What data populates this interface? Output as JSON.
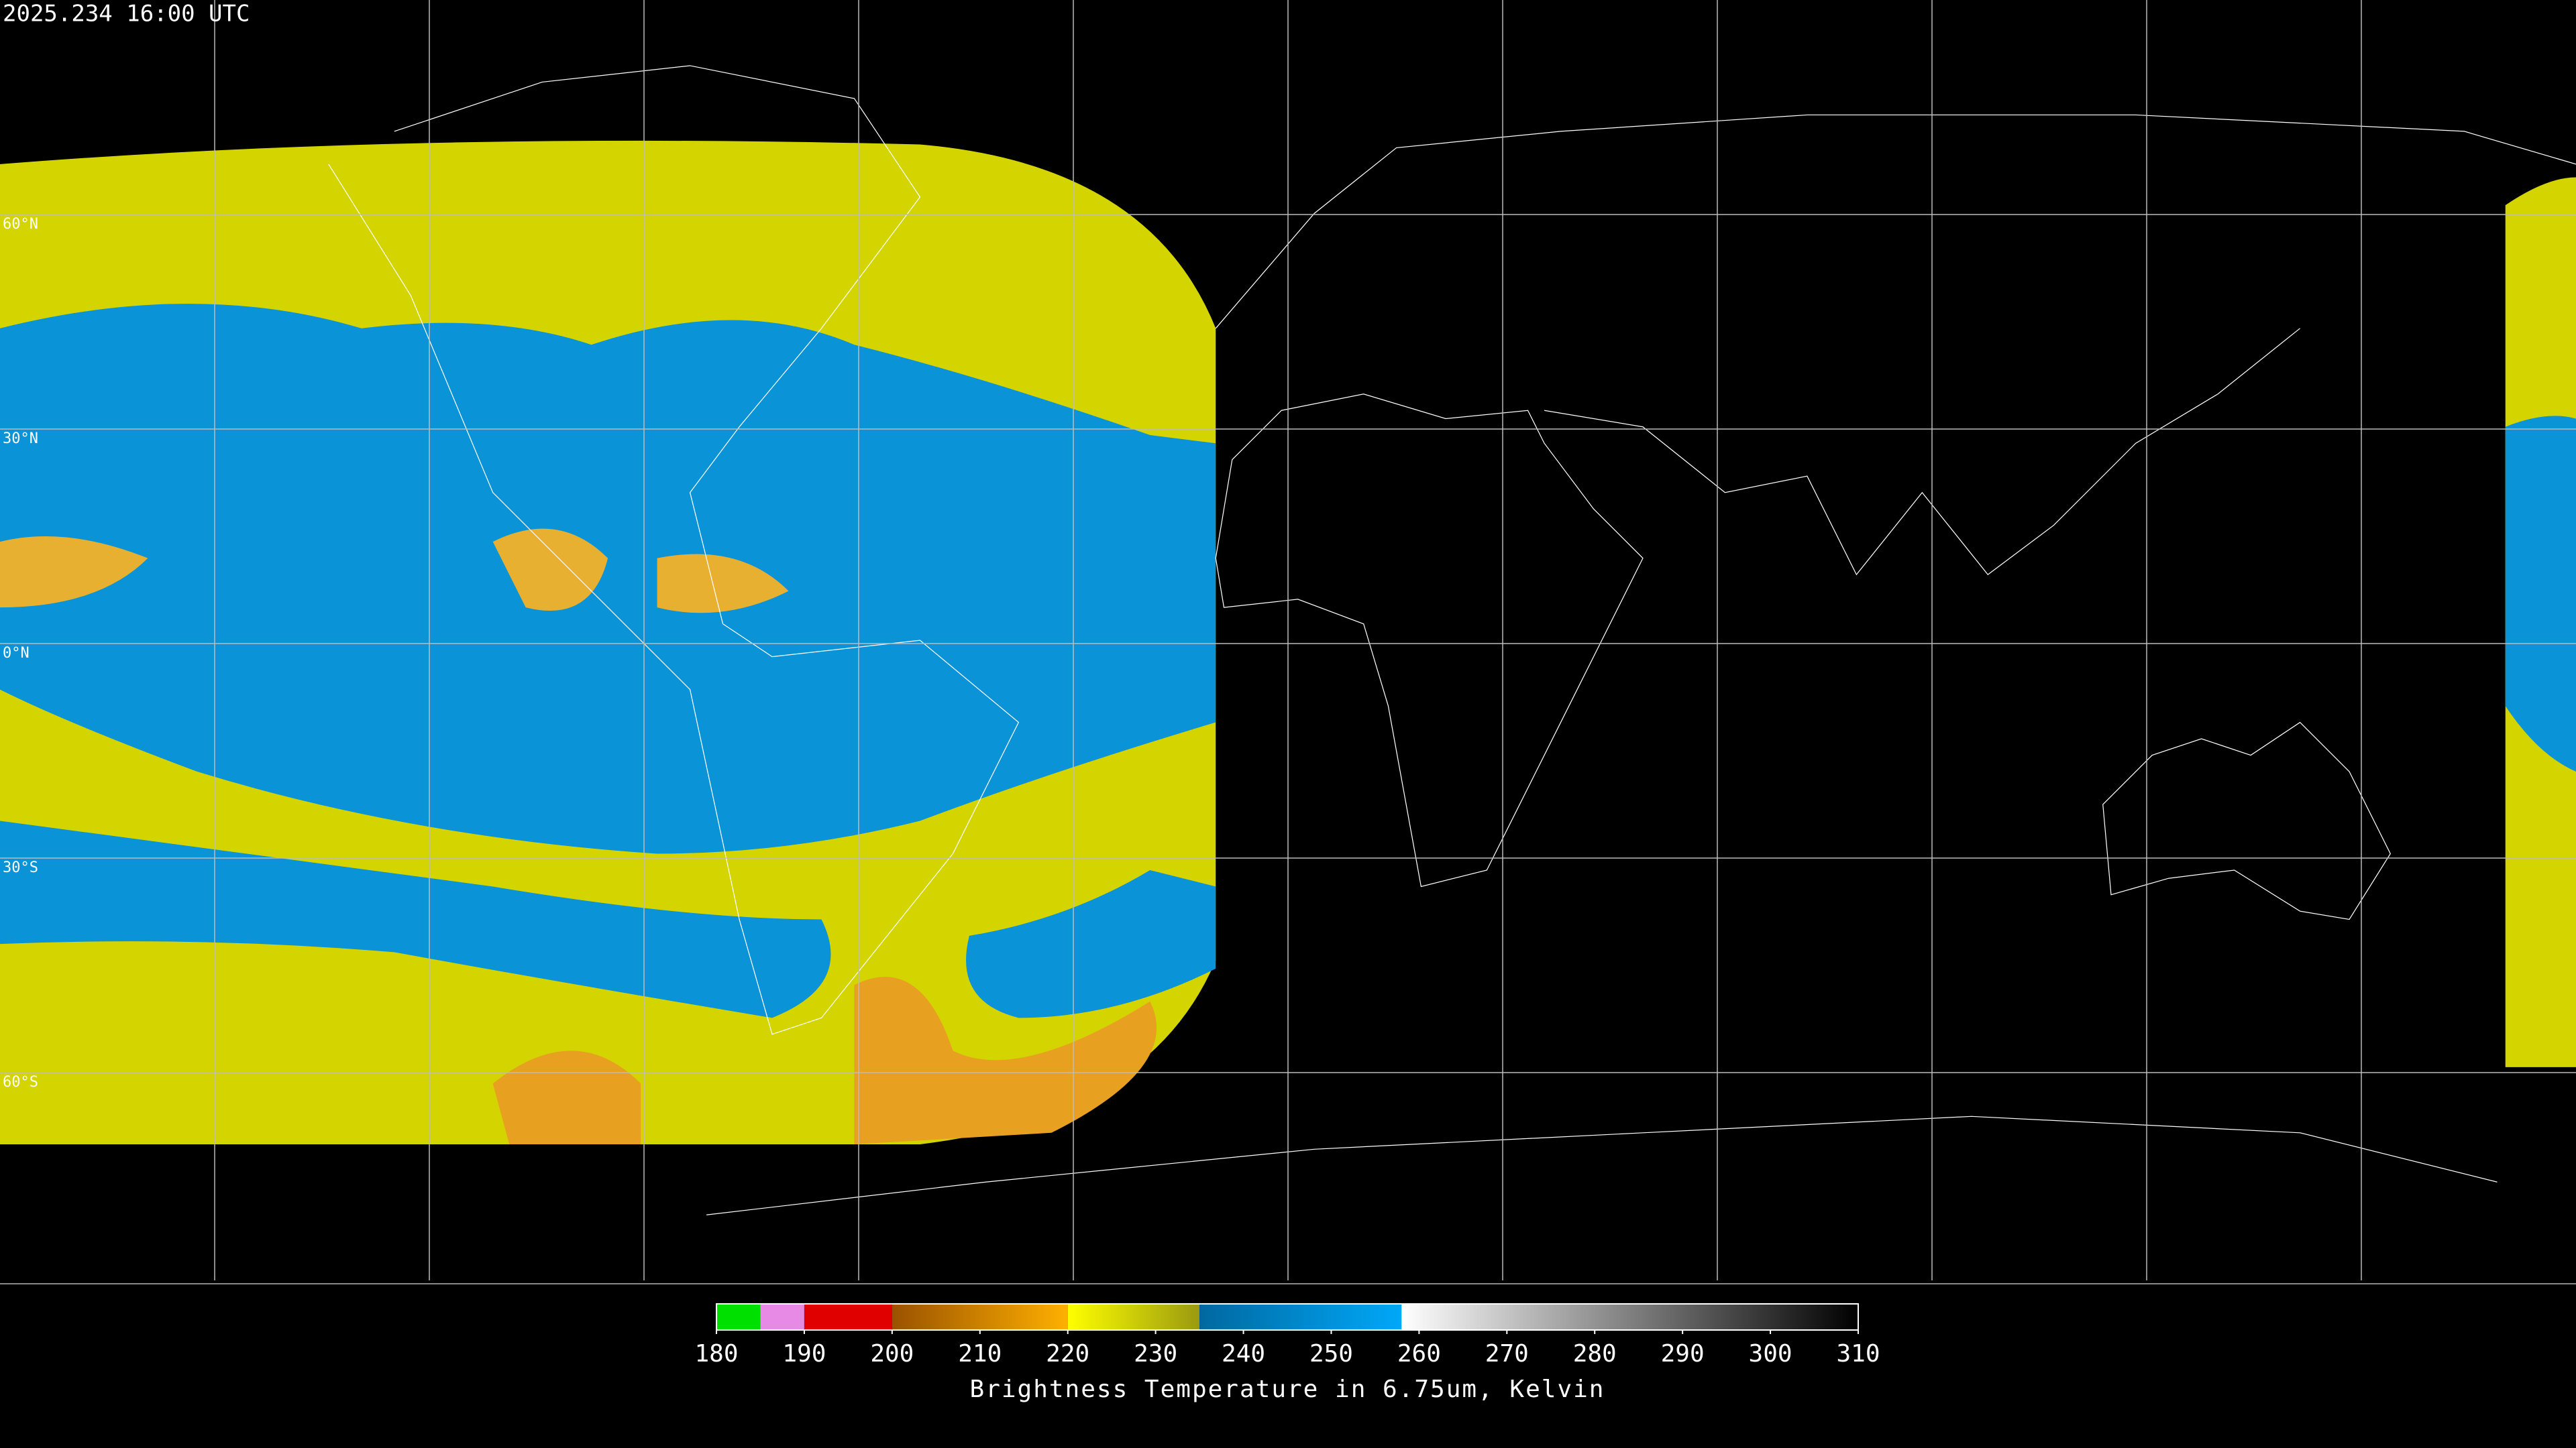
{
  "header": {
    "timestamp": "2025.234 16:00 UTC"
  },
  "map": {
    "latitude_labels": [
      "60°N",
      "30°N",
      "0°N",
      "30°S",
      "60°S"
    ]
  },
  "colorbar": {
    "range": [
      180,
      310
    ],
    "ticks": [
      180,
      190,
      200,
      210,
      220,
      230,
      240,
      250,
      260,
      270,
      280,
      290,
      300,
      310
    ],
    "title": "Brightness Temperature in 6.75um, Kelvin",
    "segments": [
      {
        "from": 180,
        "to": 185,
        "colors": [
          "#00e000",
          "#00e000"
        ]
      },
      {
        "from": 185,
        "to": 190,
        "colors": [
          "#e68ae6",
          "#e68ae6"
        ]
      },
      {
        "from": 190,
        "to": 200,
        "colors": [
          "#e00000",
          "#e00000"
        ]
      },
      {
        "from": 200,
        "to": 220,
        "colors": [
          "#9a5200",
          "#ffb000"
        ]
      },
      {
        "from": 220,
        "to": 235,
        "colors": [
          "#ffff00",
          "#9a9a10"
        ]
      },
      {
        "from": 235,
        "to": 258,
        "colors": [
          "#0068a0",
          "#00a8f8"
        ]
      },
      {
        "from": 258,
        "to": 310,
        "colors": [
          "#ffffff",
          "#000000"
        ]
      }
    ]
  }
}
